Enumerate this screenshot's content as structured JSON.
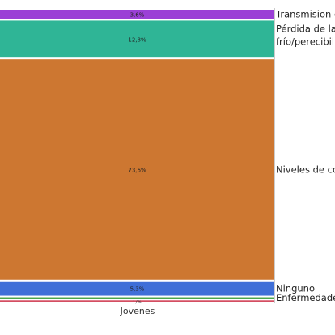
{
  "chart_data": {
    "type": "bar",
    "stacked": true,
    "categories": [
      "Jovenes"
    ],
    "series": [
      {
        "name": "Enfermedade",
        "values": [
          1.0
        ],
        "label": "1,0%",
        "color": "#d44e62"
      },
      {
        "name": "",
        "values": [
          1.0
        ],
        "label": "",
        "color": "#4aa54a"
      },
      {
        "name": "Ninguno",
        "values": [
          5.3
        ],
        "label": "5,3%",
        "color": "#3f6fd8"
      },
      {
        "name": "Niveles de col",
        "values": [
          73.6
        ],
        "label": "73,6%",
        "color": "#cd7731"
      },
      {
        "name": "Pérdida de la\nfrío/perecibili",
        "values": [
          12.8
        ],
        "label": "12,8%",
        "color": "#2fb596"
      },
      {
        "name": "Transmision c",
        "values": [
          3.6
        ],
        "label": "3,6%",
        "color": "#9b3fd6"
      }
    ],
    "ylim": [
      0,
      100
    ],
    "grid": false,
    "legend": "right"
  }
}
